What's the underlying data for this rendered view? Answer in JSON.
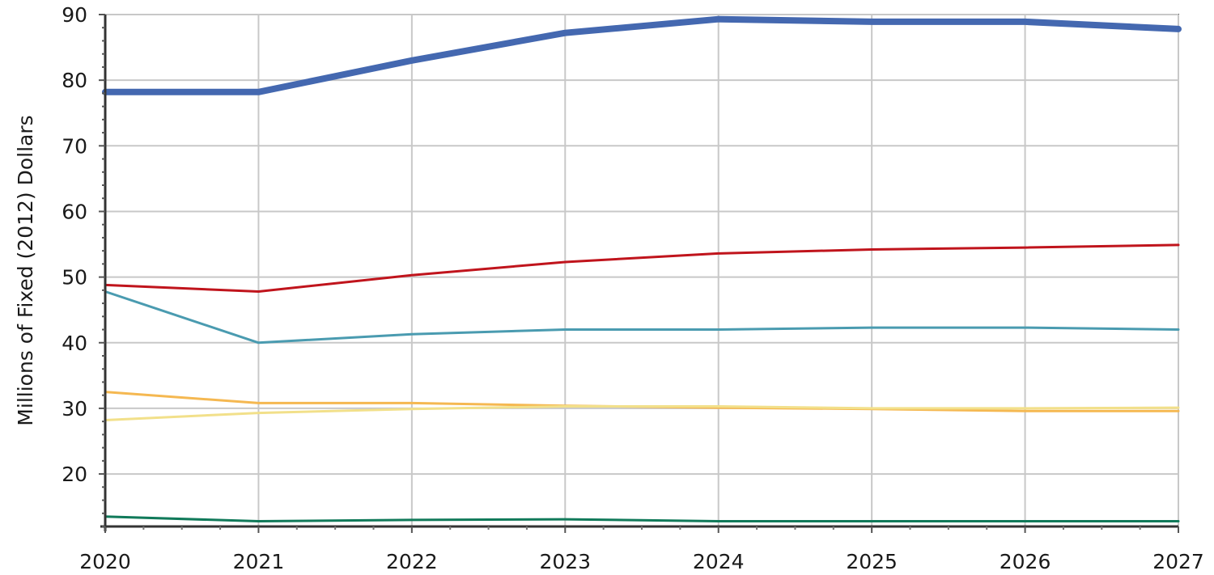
{
  "chart_data": {
    "type": "line",
    "title": "",
    "xlabel": "",
    "ylabel": "Millions of Fixed (2012) Dollars",
    "x": [
      2020,
      2021,
      2022,
      2023,
      2024,
      2025,
      2026,
      2027
    ],
    "xlim": [
      2020,
      2027
    ],
    "ylim": [
      12,
      90
    ],
    "yticks": [
      20,
      30,
      40,
      50,
      60,
      70,
      80,
      90
    ],
    "grid": true,
    "legend": "none",
    "series": [
      {
        "color": "#4468b0",
        "values": [
          78.2,
          78.2,
          83.0,
          87.2,
          89.3,
          88.9,
          88.9,
          87.8
        ]
      },
      {
        "color": "#c0141c",
        "values": [
          48.8,
          47.8,
          50.3,
          52.3,
          53.6,
          54.2,
          54.5,
          54.9
        ]
      },
      {
        "color": "#4a9bb0",
        "values": [
          47.8,
          40.0,
          41.3,
          42.0,
          42.0,
          42.3,
          42.3,
          42.0
        ]
      },
      {
        "color": "#f5b851",
        "values": [
          32.5,
          30.8,
          30.8,
          30.4,
          30.1,
          29.9,
          29.6,
          29.6
        ]
      },
      {
        "color": "#f2e08a",
        "values": [
          28.2,
          29.3,
          29.9,
          30.3,
          30.3,
          30.0,
          30.0,
          30.1
        ]
      },
      {
        "color": "#117a5a",
        "values": [
          13.5,
          12.8,
          13.0,
          13.1,
          12.8,
          12.8,
          12.8,
          12.8
        ]
      }
    ]
  }
}
